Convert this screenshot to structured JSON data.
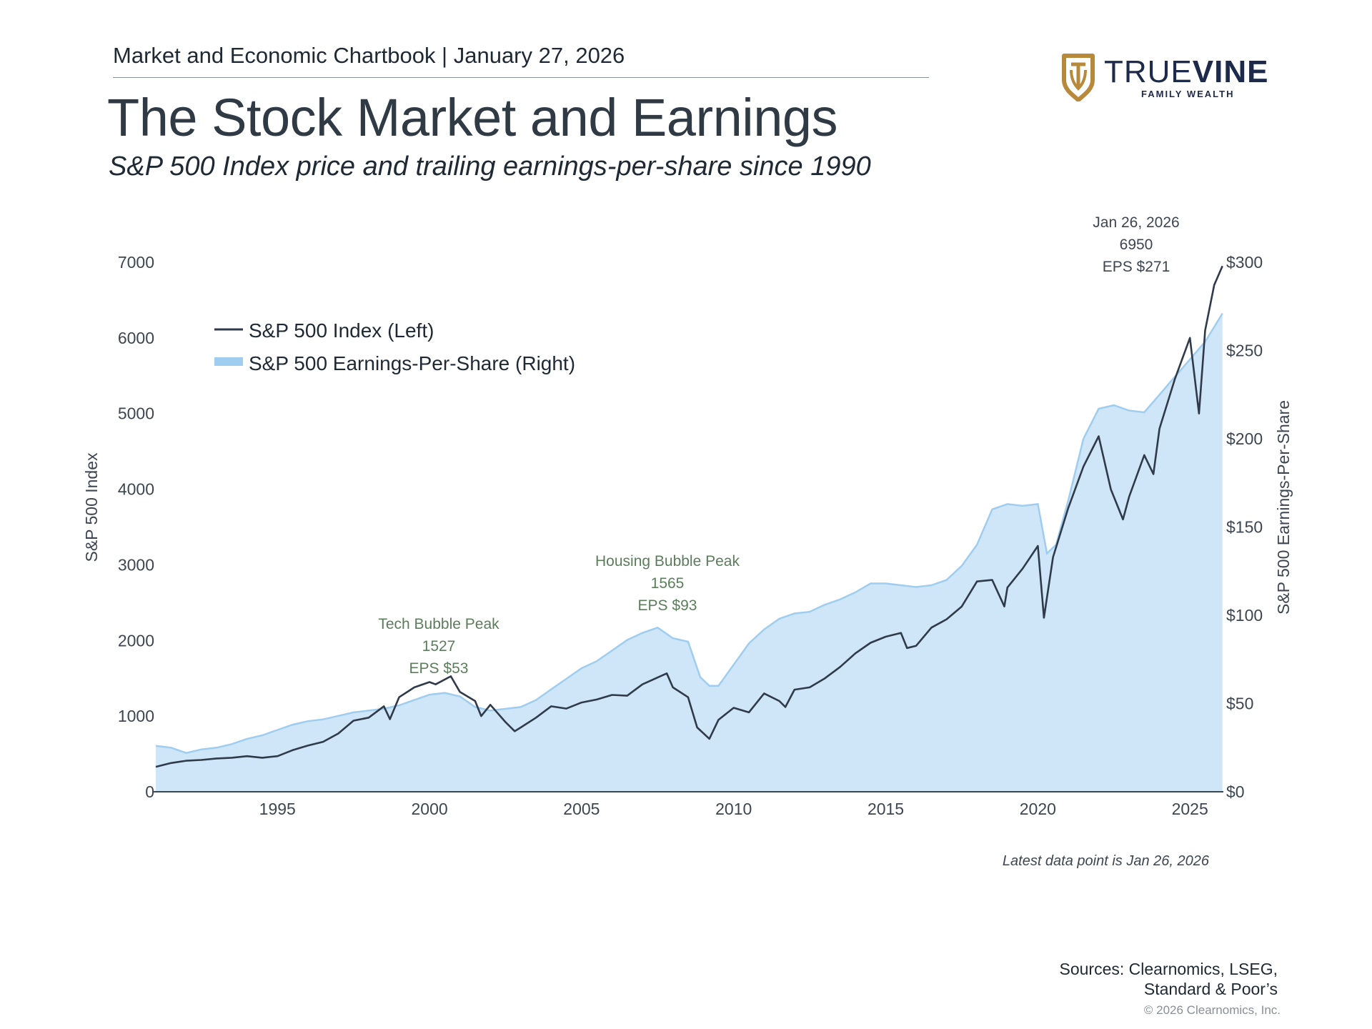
{
  "header": {
    "kicker": "Market and Economic Chartbook | January 27, 2026",
    "title": "The Stock Market and Earnings",
    "subtitle": "S&P 500 Index price and trailing earnings-per-share since 1990"
  },
  "logo": {
    "word_light": "TRUE",
    "word_bold": "VINE",
    "tagline": "FAMILY WEALTH",
    "gold": "#b8893a",
    "navy": "#1e2a4a"
  },
  "footer": {
    "note": "Latest data point is Jan 26, 2026",
    "sources_line1": "Sources: Clearnomics, LSEG,",
    "sources_line2": "Standard & Poor’s",
    "copyright": "© 2026 Clearnomics, Inc."
  },
  "chart_data": {
    "type": "line",
    "xlim": [
      1991.0,
      2026.1
    ],
    "x_ticks": [
      1995,
      2000,
      2005,
      2010,
      2015,
      2020,
      2025
    ],
    "ylabel_left": "S&P 500 Index",
    "ylabel_right": "S&P 500 Earnings-Per-Share",
    "ylim_left": [
      0,
      7000
    ],
    "ylim_right": [
      0,
      300
    ],
    "y_ticks_left": [
      {
        "value": 0,
        "label": "0"
      },
      {
        "value": 1000,
        "label": "1000"
      },
      {
        "value": 2000,
        "label": "2000"
      },
      {
        "value": 3000,
        "label": "3000"
      },
      {
        "value": 4000,
        "label": "4000"
      },
      {
        "value": 5000,
        "label": "5000"
      },
      {
        "value": 6000,
        "label": "6000"
      },
      {
        "value": 7000,
        "label": "7000"
      }
    ],
    "y_ticks_right": [
      {
        "value": 0,
        "label": "$0"
      },
      {
        "value": 50,
        "label": "$50"
      },
      {
        "value": 100,
        "label": "$100"
      },
      {
        "value": 150,
        "label": "$150"
      },
      {
        "value": 200,
        "label": "$200"
      },
      {
        "value": 250,
        "label": "$250"
      },
      {
        "value": 300,
        "label": "$300"
      }
    ],
    "legend": {
      "placement": "top-left",
      "entries": [
        "S&P 500 Index (Left)",
        "S&P 500 Earnings-Per-Share (Right)"
      ]
    },
    "colors": {
      "index_line": "#2f3a4a",
      "eps_fill": "#cfe6f8",
      "eps_edge": "#9fcdf0",
      "annotation_green": "#5b7d5b",
      "annotation_dark": "#3d4650"
    },
    "series": [
      {
        "name": "S&P 500 Index (Left)",
        "axis": "left",
        "style": "line",
        "points": [
          [
            1991.0,
            330
          ],
          [
            1991.5,
            380
          ],
          [
            1992.0,
            410
          ],
          [
            1992.5,
            420
          ],
          [
            1993.0,
            440
          ],
          [
            1993.5,
            450
          ],
          [
            1994.0,
            470
          ],
          [
            1994.5,
            450
          ],
          [
            1995.0,
            470
          ],
          [
            1995.5,
            550
          ],
          [
            1996.0,
            610
          ],
          [
            1996.5,
            660
          ],
          [
            1997.0,
            770
          ],
          [
            1997.5,
            940
          ],
          [
            1998.0,
            980
          ],
          [
            1998.5,
            1130
          ],
          [
            1998.7,
            960
          ],
          [
            1999.0,
            1250
          ],
          [
            1999.5,
            1380
          ],
          [
            2000.0,
            1450
          ],
          [
            2000.2,
            1420
          ],
          [
            2000.7,
            1527
          ],
          [
            2001.0,
            1320
          ],
          [
            2001.5,
            1200
          ],
          [
            2001.7,
            1000
          ],
          [
            2002.0,
            1150
          ],
          [
            2002.5,
            920
          ],
          [
            2002.8,
            800
          ],
          [
            2003.0,
            850
          ],
          [
            2003.5,
            980
          ],
          [
            2004.0,
            1130
          ],
          [
            2004.5,
            1100
          ],
          [
            2005.0,
            1180
          ],
          [
            2005.5,
            1220
          ],
          [
            2006.0,
            1280
          ],
          [
            2006.5,
            1270
          ],
          [
            2007.0,
            1420
          ],
          [
            2007.8,
            1565
          ],
          [
            2008.0,
            1380
          ],
          [
            2008.5,
            1250
          ],
          [
            2008.8,
            850
          ],
          [
            2009.2,
            700
          ],
          [
            2009.5,
            950
          ],
          [
            2010.0,
            1110
          ],
          [
            2010.5,
            1050
          ],
          [
            2011.0,
            1300
          ],
          [
            2011.5,
            1200
          ],
          [
            2011.7,
            1120
          ],
          [
            2012.0,
            1350
          ],
          [
            2012.5,
            1380
          ],
          [
            2013.0,
            1500
          ],
          [
            2013.5,
            1650
          ],
          [
            2014.0,
            1830
          ],
          [
            2014.5,
            1970
          ],
          [
            2015.0,
            2050
          ],
          [
            2015.5,
            2100
          ],
          [
            2015.7,
            1900
          ],
          [
            2016.0,
            1930
          ],
          [
            2016.5,
            2170
          ],
          [
            2017.0,
            2280
          ],
          [
            2017.5,
            2450
          ],
          [
            2018.0,
            2780
          ],
          [
            2018.5,
            2800
          ],
          [
            2018.9,
            2450
          ],
          [
            2019.0,
            2700
          ],
          [
            2019.5,
            2950
          ],
          [
            2020.0,
            3250
          ],
          [
            2020.2,
            2300
          ],
          [
            2020.5,
            3100
          ],
          [
            2021.0,
            3750
          ],
          [
            2021.5,
            4300
          ],
          [
            2022.0,
            4700
          ],
          [
            2022.4,
            4000
          ],
          [
            2022.8,
            3600
          ],
          [
            2023.0,
            3900
          ],
          [
            2023.5,
            4450
          ],
          [
            2023.8,
            4200
          ],
          [
            2024.0,
            4800
          ],
          [
            2024.5,
            5450
          ],
          [
            2025.0,
            6000
          ],
          [
            2025.3,
            5000
          ],
          [
            2025.5,
            6100
          ],
          [
            2025.8,
            6700
          ],
          [
            2026.07,
            6950
          ]
        ]
      },
      {
        "name": "S&P 500 Earnings-Per-Share (Right)",
        "axis": "right",
        "style": "area",
        "points": [
          [
            1991.0,
            26
          ],
          [
            1991.5,
            25
          ],
          [
            1992.0,
            22
          ],
          [
            1992.5,
            24
          ],
          [
            1993.0,
            25
          ],
          [
            1993.5,
            27
          ],
          [
            1994.0,
            30
          ],
          [
            1994.5,
            32
          ],
          [
            1995.0,
            35
          ],
          [
            1995.5,
            38
          ],
          [
            1996.0,
            40
          ],
          [
            1996.5,
            41
          ],
          [
            1997.0,
            43
          ],
          [
            1997.5,
            45
          ],
          [
            1998.0,
            46
          ],
          [
            1998.5,
            47
          ],
          [
            1999.0,
            49
          ],
          [
            1999.5,
            52
          ],
          [
            2000.0,
            55
          ],
          [
            2000.5,
            56
          ],
          [
            2001.0,
            54
          ],
          [
            2001.5,
            48
          ],
          [
            2002.0,
            46
          ],
          [
            2002.5,
            47
          ],
          [
            2003.0,
            48
          ],
          [
            2003.5,
            52
          ],
          [
            2004.0,
            58
          ],
          [
            2004.5,
            64
          ],
          [
            2005.0,
            70
          ],
          [
            2005.5,
            74
          ],
          [
            2006.0,
            80
          ],
          [
            2006.5,
            86
          ],
          [
            2007.0,
            90
          ],
          [
            2007.5,
            93
          ],
          [
            2008.0,
            87
          ],
          [
            2008.5,
            85
          ],
          [
            2008.9,
            65
          ],
          [
            2009.2,
            60
          ],
          [
            2009.5,
            60
          ],
          [
            2010.0,
            72
          ],
          [
            2010.5,
            84
          ],
          [
            2011.0,
            92
          ],
          [
            2011.5,
            98
          ],
          [
            2012.0,
            101
          ],
          [
            2012.5,
            102
          ],
          [
            2013.0,
            106
          ],
          [
            2013.5,
            109
          ],
          [
            2014.0,
            113
          ],
          [
            2014.5,
            118
          ],
          [
            2015.0,
            118
          ],
          [
            2015.5,
            117
          ],
          [
            2016.0,
            116
          ],
          [
            2016.5,
            117
          ],
          [
            2017.0,
            120
          ],
          [
            2017.5,
            128
          ],
          [
            2018.0,
            140
          ],
          [
            2018.5,
            160
          ],
          [
            2019.0,
            163
          ],
          [
            2019.5,
            162
          ],
          [
            2020.0,
            163
          ],
          [
            2020.3,
            135
          ],
          [
            2020.6,
            140
          ],
          [
            2021.0,
            165
          ],
          [
            2021.5,
            200
          ],
          [
            2022.0,
            217
          ],
          [
            2022.5,
            219
          ],
          [
            2023.0,
            216
          ],
          [
            2023.5,
            215
          ],
          [
            2024.0,
            225
          ],
          [
            2024.5,
            235
          ],
          [
            2025.0,
            245
          ],
          [
            2025.5,
            255
          ],
          [
            2026.07,
            271
          ]
        ]
      }
    ],
    "annotations": [
      {
        "label": "Tech Bubble Peak",
        "value": "1527",
        "eps": "EPS $53",
        "x": 2000.2,
        "y_left": 1527
      },
      {
        "label": "Housing Bubble Peak",
        "value": "1565",
        "eps": "EPS $93",
        "x": 2007.8,
        "y_left": 1565
      },
      {
        "label": "Jan 26, 2026",
        "value": "6950",
        "eps": "EPS $271",
        "x": 2024.3,
        "y_left": 6950
      }
    ]
  }
}
